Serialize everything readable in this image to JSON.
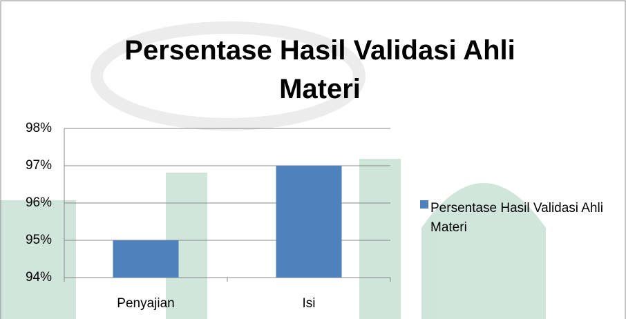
{
  "chart_data": {
    "type": "bar",
    "title": "Persentase Hasil Validasi Ahli Materi",
    "categories": [
      "Penyajian",
      "Isi"
    ],
    "series": [
      {
        "name": "Persentase Hasil Validasi Ahli Materi",
        "color": "#4f81bd",
        "values": [
          95,
          97
        ]
      }
    ],
    "ylim": [
      94,
      98
    ],
    "yticks": [
      {
        "value": 94,
        "label": "94%"
      },
      {
        "value": 95,
        "label": "95%"
      },
      {
        "value": 96,
        "label": "96%"
      },
      {
        "value": 97,
        "label": "97%"
      },
      {
        "value": 98,
        "label": "98%"
      }
    ],
    "grid": true,
    "legend": "right"
  }
}
